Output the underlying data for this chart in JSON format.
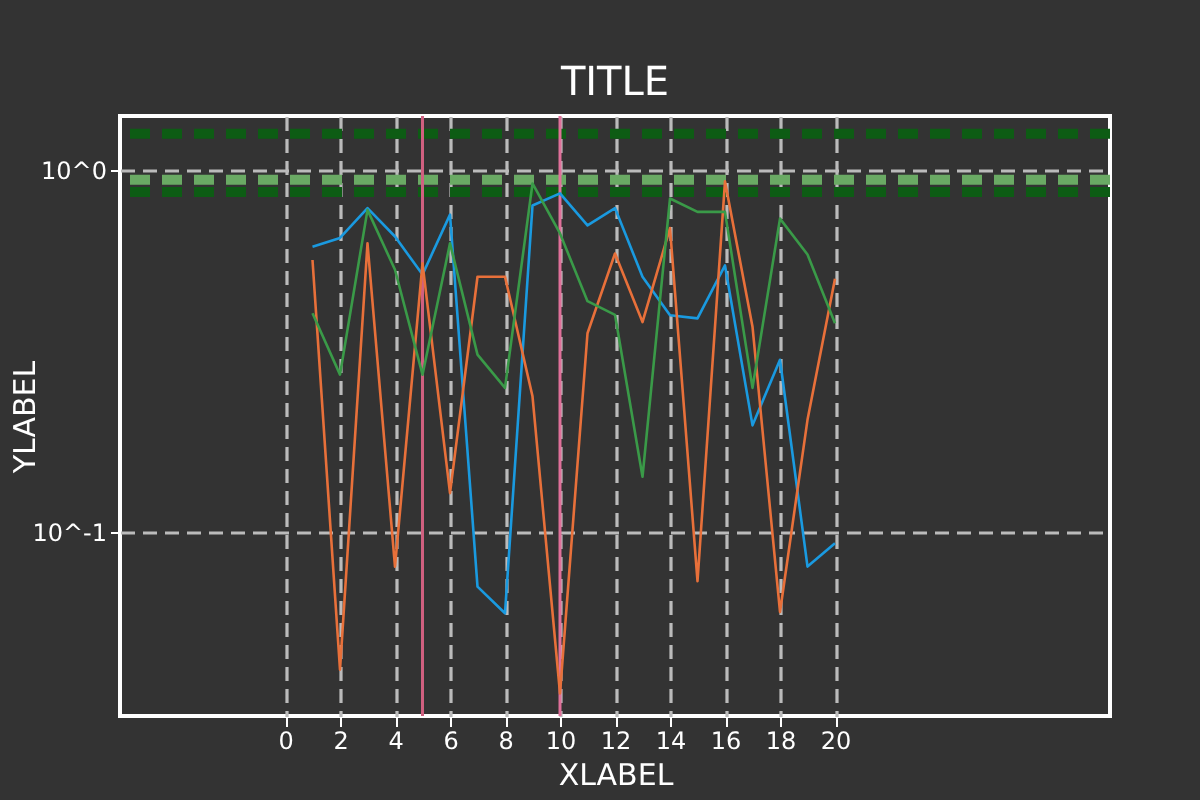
{
  "chart_data": {
    "type": "line",
    "title": "TITLE",
    "xlabel": "XLABEL",
    "ylabel": "YLABEL",
    "x": [
      1,
      2,
      3,
      4,
      5,
      6,
      7,
      8,
      9,
      10,
      11,
      12,
      13,
      14,
      15,
      16,
      17,
      18,
      19,
      20
    ],
    "series": [
      {
        "color": "#1a9ae0",
        "values": [
          0.614,
          0.649,
          0.785,
          0.655,
          0.514,
          0.753,
          0.0706,
          0.0596,
          0.798,
          0.862,
          0.703,
          0.785,
          0.507,
          0.397,
          0.389,
          0.545,
          0.197,
          0.299,
          0.0802,
          0.093
        ]
      },
      {
        "color": "#e8703a",
        "values": [
          0.564,
          0.0416,
          0.627,
          0.0802,
          0.552,
          0.128,
          0.507,
          0.507,
          0.237,
          0.0358,
          0.354,
          0.588,
          0.38,
          0.691,
          0.0731,
          0.93,
          0.369,
          0.0601,
          0.204,
          0.501
        ]
      },
      {
        "color": "#3a9a48",
        "values": [
          0.402,
          0.272,
          0.776,
          0.53,
          0.272,
          0.627,
          0.309,
          0.25,
          0.918,
          0.668,
          0.434,
          0.398,
          0.142,
          0.834,
          0.766,
          0.766,
          0.25,
          0.734,
          0.584,
          0.377
        ]
      }
    ],
    "xlim": [
      -6,
      30
    ],
    "xticks": [
      0,
      2,
      4,
      6,
      8,
      10,
      12,
      14,
      16,
      18,
      20
    ],
    "ylim": [
      0.031,
      1.41
    ],
    "yticks": [
      {
        "value": 1,
        "label": "10^0"
      },
      {
        "value": 0.1,
        "label": "10^-1"
      }
    ],
    "log": "y",
    "grid": true,
    "marker": "none",
    "line_style": "solid",
    "ref_lines": [
      {
        "axis": "y",
        "value": 1.26,
        "color": "#0d5c14",
        "line_style": "dashed"
      },
      {
        "axis": "y",
        "value": 0.94,
        "color": "#6aaa64",
        "line_style": "dashed"
      },
      {
        "axis": "y",
        "value": 0.87,
        "color": "#0d5c14",
        "line_style": "dashed"
      },
      {
        "axis": "x",
        "value": 5,
        "color": "#d06080",
        "line_style": "solid"
      },
      {
        "axis": "x",
        "value": 10,
        "color": "#e0709a",
        "line_style": "solid"
      }
    ]
  }
}
